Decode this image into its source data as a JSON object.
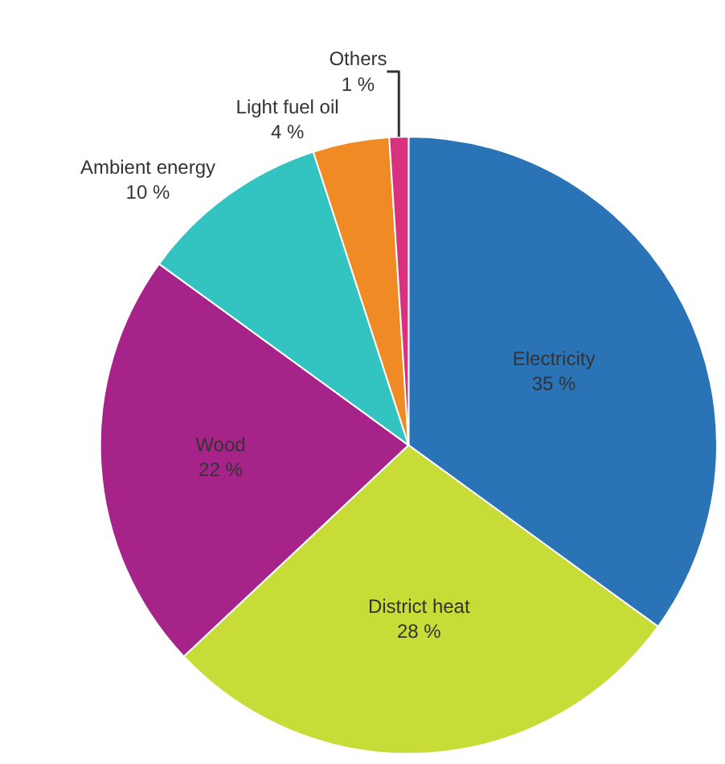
{
  "chart_data": {
    "type": "pie",
    "categories": [
      "Electricity",
      "District heat",
      "Wood",
      "Ambient energy",
      "Light fuel oil",
      "Others"
    ],
    "values": [
      35,
      28,
      22,
      10,
      4,
      1
    ],
    "value_labels": [
      "35 %",
      "28 %",
      "22 %",
      "10 %",
      "4 %",
      "1 %"
    ],
    "colors": [
      "#2a73b6",
      "#c8dc37",
      "#a6238a",
      "#33c3c0",
      "#f08a24",
      "#d8327e"
    ],
    "legend": false
  }
}
